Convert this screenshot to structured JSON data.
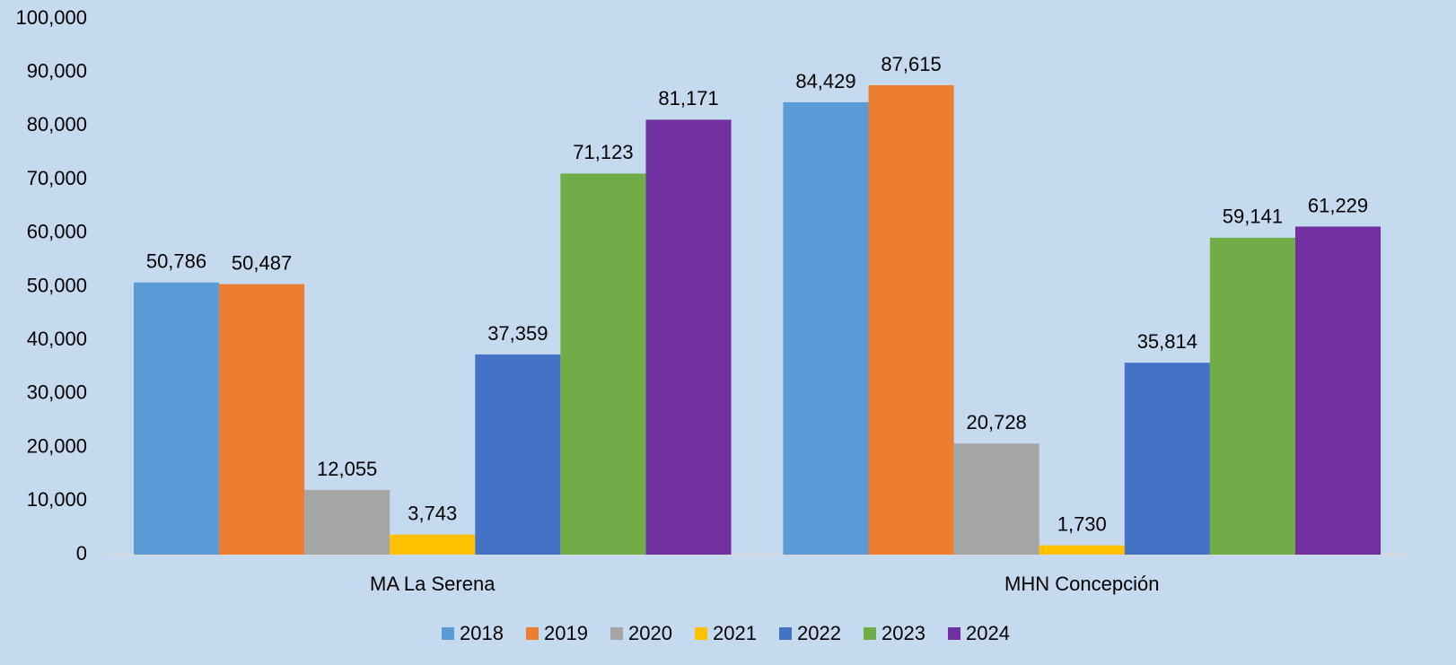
{
  "chart_data": {
    "type": "bar",
    "categories": [
      "MA La Serena",
      "MHN Concepción"
    ],
    "series": [
      {
        "name": "2018",
        "color": "#5b9bd5",
        "values": [
          50786,
          84429
        ],
        "value_labels": [
          "50,786",
          "84,429"
        ]
      },
      {
        "name": "2019",
        "color": "#ed7d31",
        "values": [
          50487,
          87615
        ],
        "value_labels": [
          "50,487",
          "87,615"
        ]
      },
      {
        "name": "2020",
        "color": "#a5a5a5",
        "values": [
          12055,
          20728
        ],
        "value_labels": [
          "12,055",
          "20,728"
        ]
      },
      {
        "name": "2021",
        "color": "#ffc000",
        "values": [
          3743,
          1730
        ],
        "value_labels": [
          "3,743",
          "1,730"
        ]
      },
      {
        "name": "2022",
        "color": "#4472c4",
        "values": [
          37359,
          35814
        ],
        "value_labels": [
          "37,359",
          "35,814"
        ]
      },
      {
        "name": "2023",
        "color": "#70ad47",
        "values": [
          71123,
          59141
        ],
        "value_labels": [
          "71,123",
          "59,141"
        ]
      },
      {
        "name": "2024",
        "color": "#7030a0",
        "values": [
          81171,
          61229
        ],
        "value_labels": [
          "81,171",
          "61,229"
        ]
      }
    ],
    "ylim": [
      0,
      100000
    ],
    "yticks": [
      0,
      {
        "value": 10000,
        "label": "10,000"
      },
      {
        "value": 20000,
        "label": "20,000"
      },
      {
        "value": 30000,
        "label": "30,000"
      },
      {
        "value": 40000,
        "label": "40,000"
      },
      {
        "value": 50000,
        "label": "50,000"
      },
      {
        "value": 60000,
        "label": "60,000"
      },
      {
        "value": 70000,
        "label": "70,000"
      },
      {
        "value": 80000,
        "label": "80,000"
      },
      {
        "value": 90000,
        "label": "90,000"
      },
      {
        "value": 100000,
        "label": "100,000"
      }
    ],
    "grid": false,
    "legend": "bottom"
  }
}
